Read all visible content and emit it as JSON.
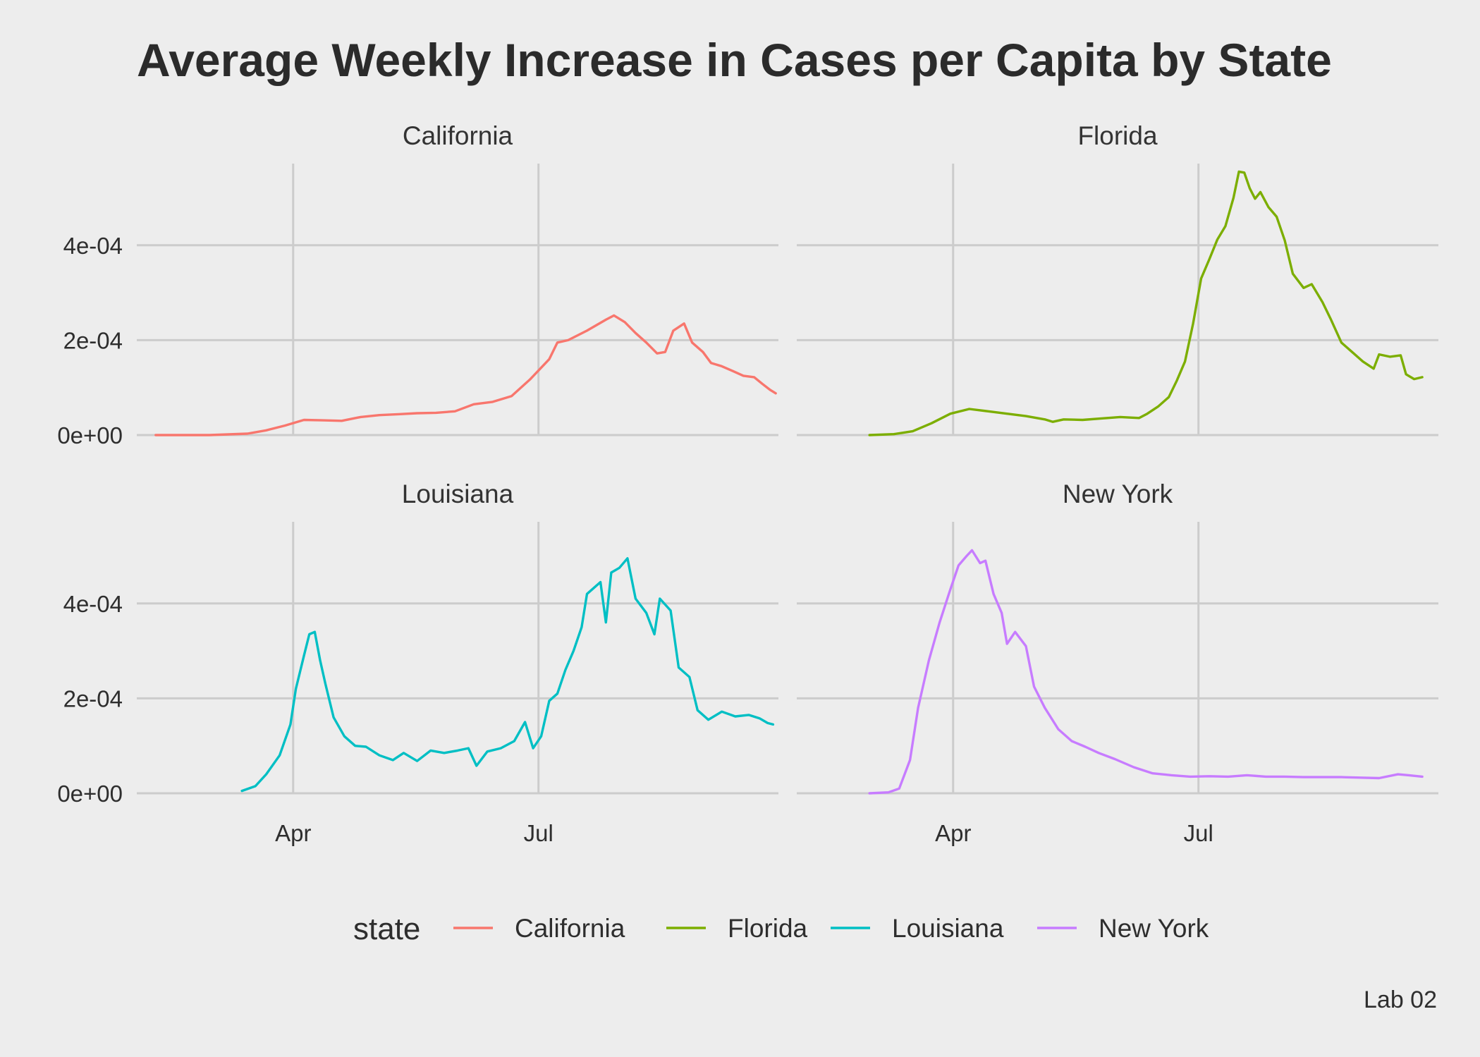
{
  "chart_data": {
    "type": "line",
    "title": "Average Weekly Increase in Cases per Capita by State",
    "caption": "Lab 02",
    "xlabel": "",
    "ylabel": "",
    "x_ticks": [
      {
        "label": "Apr",
        "date": "2020-04-01"
      },
      {
        "label": "Jul",
        "date": "2020-07-01"
      }
    ],
    "y_ticks": [
      {
        "label": "0e+00",
        "value": 0
      },
      {
        "label": "2e-04",
        "value": 0.0002
      },
      {
        "label": "4e-04",
        "value": 0.0004
      }
    ],
    "xlim": [
      "2020-02-03",
      "2020-09-28"
    ],
    "ylim": [
      0,
      0.000572
    ],
    "grid": true,
    "legend": {
      "title": "state",
      "position": "bottom"
    },
    "colors": {
      "California": "#f8766d",
      "Florida": "#7cae00",
      "Louisiana": "#00bfc4",
      "New York": "#c77cff",
      "grid": "#cccccc",
      "background": "#ededed"
    },
    "series": [
      {
        "name": "California",
        "points": [
          [
            "2020-02-10",
            0
          ],
          [
            "2020-03-01",
            0
          ],
          [
            "2020-03-15",
            3e-06
          ],
          [
            "2020-03-22",
            1e-05
          ],
          [
            "2020-03-29",
            2e-05
          ],
          [
            "2020-04-05",
            3.2e-05
          ],
          [
            "2020-04-12",
            3.1e-05
          ],
          [
            "2020-04-19",
            3e-05
          ],
          [
            "2020-04-26",
            3.8e-05
          ],
          [
            "2020-05-03",
            4.2e-05
          ],
          [
            "2020-05-10",
            4.4e-05
          ],
          [
            "2020-05-17",
            4.6e-05
          ],
          [
            "2020-05-24",
            4.7e-05
          ],
          [
            "2020-05-31",
            5e-05
          ],
          [
            "2020-06-07",
            6.5e-05
          ],
          [
            "2020-06-14",
            7e-05
          ],
          [
            "2020-06-21",
            8.2e-05
          ],
          [
            "2020-06-28",
            0.000118
          ],
          [
            "2020-07-05",
            0.00016
          ],
          [
            "2020-07-08",
            0.000195
          ],
          [
            "2020-07-12",
            0.0002
          ],
          [
            "2020-07-19",
            0.00022
          ],
          [
            "2020-07-26",
            0.000243
          ],
          [
            "2020-07-29",
            0.000252
          ],
          [
            "2020-08-02",
            0.000238
          ],
          [
            "2020-08-06",
            0.000215
          ],
          [
            "2020-08-10",
            0.000195
          ],
          [
            "2020-08-14",
            0.000172
          ],
          [
            "2020-08-17",
            0.000175
          ],
          [
            "2020-08-20",
            0.00022
          ],
          [
            "2020-08-24",
            0.000235
          ],
          [
            "2020-08-27",
            0.000195
          ],
          [
            "2020-08-31",
            0.000175
          ],
          [
            "2020-09-03",
            0.000152
          ],
          [
            "2020-09-07",
            0.000145
          ],
          [
            "2020-09-11",
            0.000135
          ],
          [
            "2020-09-15",
            0.000125
          ],
          [
            "2020-09-19",
            0.000122
          ],
          [
            "2020-09-22",
            0.000108
          ],
          [
            "2020-09-25",
            9.5e-05
          ],
          [
            "2020-09-27",
            8.8e-05
          ]
        ]
      },
      {
        "name": "Florida",
        "points": [
          [
            "2020-03-01",
            0
          ],
          [
            "2020-03-10",
            2e-06
          ],
          [
            "2020-03-17",
            8e-06
          ],
          [
            "2020-03-24",
            2.5e-05
          ],
          [
            "2020-03-31",
            4.5e-05
          ],
          [
            "2020-04-07",
            5.5e-05
          ],
          [
            "2020-04-14",
            5e-05
          ],
          [
            "2020-04-21",
            4.5e-05
          ],
          [
            "2020-04-28",
            4e-05
          ],
          [
            "2020-05-05",
            3.3e-05
          ],
          [
            "2020-05-08",
            2.8e-05
          ],
          [
            "2020-05-12",
            3.3e-05
          ],
          [
            "2020-05-19",
            3.2e-05
          ],
          [
            "2020-05-26",
            3.5e-05
          ],
          [
            "2020-06-02",
            3.8e-05
          ],
          [
            "2020-06-09",
            3.6e-05
          ],
          [
            "2020-06-12",
            4.5e-05
          ],
          [
            "2020-06-16",
            6e-05
          ],
          [
            "2020-06-20",
            8e-05
          ],
          [
            "2020-06-23",
            0.000115
          ],
          [
            "2020-06-26",
            0.000155
          ],
          [
            "2020-06-29",
            0.000235
          ],
          [
            "2020-07-02",
            0.00033
          ],
          [
            "2020-07-05",
            0.00037
          ],
          [
            "2020-07-08",
            0.000412
          ],
          [
            "2020-07-11",
            0.00044
          ],
          [
            "2020-07-14",
            0.0005
          ],
          [
            "2020-07-16",
            0.000555
          ],
          [
            "2020-07-18",
            0.000553
          ],
          [
            "2020-07-20",
            0.00052
          ],
          [
            "2020-07-22",
            0.000498
          ],
          [
            "2020-07-24",
            0.000512
          ],
          [
            "2020-07-27",
            0.00048
          ],
          [
            "2020-07-30",
            0.00046
          ],
          [
            "2020-08-02",
            0.00041
          ],
          [
            "2020-08-05",
            0.00034
          ],
          [
            "2020-08-09",
            0.00031
          ],
          [
            "2020-08-12",
            0.000318
          ],
          [
            "2020-08-16",
            0.00028
          ],
          [
            "2020-08-19",
            0.000245
          ],
          [
            "2020-08-23",
            0.000195
          ],
          [
            "2020-08-27",
            0.000175
          ],
          [
            "2020-08-31",
            0.000155
          ],
          [
            "2020-09-04",
            0.00014
          ],
          [
            "2020-09-06",
            0.00017
          ],
          [
            "2020-09-10",
            0.000165
          ],
          [
            "2020-09-14",
            0.000168
          ],
          [
            "2020-09-16",
            0.000128
          ],
          [
            "2020-09-19",
            0.000118
          ],
          [
            "2020-09-22",
            0.000122
          ]
        ]
      },
      {
        "name": "Louisiana",
        "points": [
          [
            "2020-03-13",
            5e-06
          ],
          [
            "2020-03-18",
            1.5e-05
          ],
          [
            "2020-03-22",
            4e-05
          ],
          [
            "2020-03-27",
            8e-05
          ],
          [
            "2020-03-31",
            0.000145
          ],
          [
            "2020-04-02",
            0.00022
          ],
          [
            "2020-04-05",
            0.00029
          ],
          [
            "2020-04-07",
            0.000335
          ],
          [
            "2020-04-09",
            0.00034
          ],
          [
            "2020-04-11",
            0.00028
          ],
          [
            "2020-04-13",
            0.00023
          ],
          [
            "2020-04-16",
            0.00016
          ],
          [
            "2020-04-20",
            0.00012
          ],
          [
            "2020-04-24",
            0.0001
          ],
          [
            "2020-04-28",
            9.8e-05
          ],
          [
            "2020-05-03",
            8e-05
          ],
          [
            "2020-05-08",
            7e-05
          ],
          [
            "2020-05-12",
            8.5e-05
          ],
          [
            "2020-05-17",
            6.8e-05
          ],
          [
            "2020-05-22",
            9e-05
          ],
          [
            "2020-05-27",
            8.5e-05
          ],
          [
            "2020-06-01",
            9e-05
          ],
          [
            "2020-06-05",
            9.5e-05
          ],
          [
            "2020-06-08",
            5.8e-05
          ],
          [
            "2020-06-12",
            8.8e-05
          ],
          [
            "2020-06-17",
            9.5e-05
          ],
          [
            "2020-06-22",
            0.00011
          ],
          [
            "2020-06-26",
            0.00015
          ],
          [
            "2020-06-29",
            9.5e-05
          ],
          [
            "2020-07-02",
            0.00012
          ],
          [
            "2020-07-05",
            0.000195
          ],
          [
            "2020-07-08",
            0.00021
          ],
          [
            "2020-07-11",
            0.00026
          ],
          [
            "2020-07-14",
            0.0003
          ],
          [
            "2020-07-17",
            0.00035
          ],
          [
            "2020-07-19",
            0.00042
          ],
          [
            "2020-07-22",
            0.000435
          ],
          [
            "2020-07-24",
            0.000445
          ],
          [
            "2020-07-26",
            0.00036
          ],
          [
            "2020-07-28",
            0.000465
          ],
          [
            "2020-07-31",
            0.000475
          ],
          [
            "2020-08-03",
            0.000495
          ],
          [
            "2020-08-06",
            0.00041
          ],
          [
            "2020-08-10",
            0.00038
          ],
          [
            "2020-08-13",
            0.000335
          ],
          [
            "2020-08-15",
            0.00041
          ],
          [
            "2020-08-19",
            0.000385
          ],
          [
            "2020-08-22",
            0.000265
          ],
          [
            "2020-08-26",
            0.000245
          ],
          [
            "2020-08-29",
            0.000175
          ],
          [
            "2020-09-02",
            0.000155
          ],
          [
            "2020-09-07",
            0.000172
          ],
          [
            "2020-09-12",
            0.000162
          ],
          [
            "2020-09-17",
            0.000165
          ],
          [
            "2020-09-21",
            0.000158
          ],
          [
            "2020-09-24",
            0.000148
          ],
          [
            "2020-09-26",
            0.000145
          ]
        ]
      },
      {
        "name": "New York",
        "points": [
          [
            "2020-03-01",
            0
          ],
          [
            "2020-03-08",
            2e-06
          ],
          [
            "2020-03-12",
            1e-05
          ],
          [
            "2020-03-16",
            7e-05
          ],
          [
            "2020-03-19",
            0.00018
          ],
          [
            "2020-03-23",
            0.00028
          ],
          [
            "2020-03-27",
            0.00036
          ],
          [
            "2020-03-31",
            0.00043
          ],
          [
            "2020-04-03",
            0.00048
          ],
          [
            "2020-04-06",
            0.0005
          ],
          [
            "2020-04-08",
            0.000512
          ],
          [
            "2020-04-11",
            0.000485
          ],
          [
            "2020-04-13",
            0.00049
          ],
          [
            "2020-04-16",
            0.00042
          ],
          [
            "2020-04-19",
            0.00038
          ],
          [
            "2020-04-21",
            0.000315
          ],
          [
            "2020-04-24",
            0.00034
          ],
          [
            "2020-04-28",
            0.00031
          ],
          [
            "2020-05-01",
            0.000225
          ],
          [
            "2020-05-05",
            0.00018
          ],
          [
            "2020-05-10",
            0.000135
          ],
          [
            "2020-05-15",
            0.00011
          ],
          [
            "2020-05-20",
            9.8e-05
          ],
          [
            "2020-05-25",
            8.5e-05
          ],
          [
            "2020-05-31",
            7.2e-05
          ],
          [
            "2020-06-07",
            5.5e-05
          ],
          [
            "2020-06-14",
            4.2e-05
          ],
          [
            "2020-06-21",
            3.8e-05
          ],
          [
            "2020-06-28",
            3.5e-05
          ],
          [
            "2020-07-05",
            3.6e-05
          ],
          [
            "2020-07-12",
            3.5e-05
          ],
          [
            "2020-07-19",
            3.8e-05
          ],
          [
            "2020-07-26",
            3.5e-05
          ],
          [
            "2020-08-02",
            3.5e-05
          ],
          [
            "2020-08-09",
            3.4e-05
          ],
          [
            "2020-08-16",
            3.4e-05
          ],
          [
            "2020-08-23",
            3.4e-05
          ],
          [
            "2020-08-30",
            3.3e-05
          ],
          [
            "2020-09-06",
            3.2e-05
          ],
          [
            "2020-09-13",
            4e-05
          ],
          [
            "2020-09-17",
            3.8e-05
          ],
          [
            "2020-09-22",
            3.5e-05
          ]
        ]
      }
    ]
  }
}
